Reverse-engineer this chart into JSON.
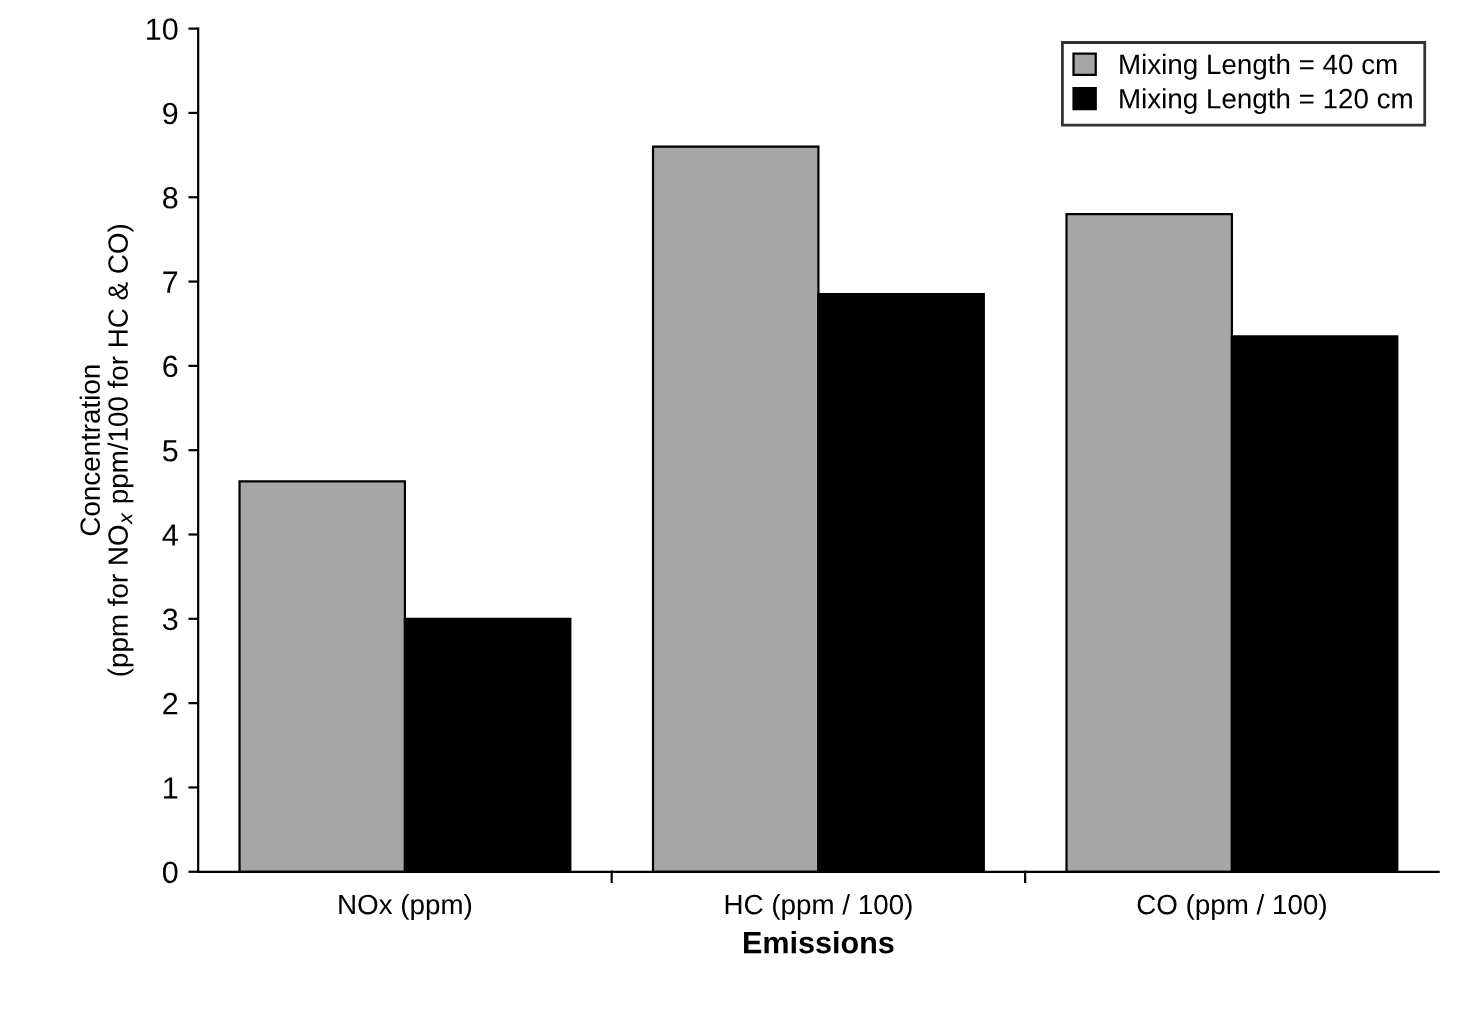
{
  "chart_data": {
    "type": "bar",
    "xlabel": "Emissions",
    "ylabel": "Concentration\n(ppm for NO$_{x}$ ppm/100 for HC & CO)",
    "categories": [
      "NOx (ppm)",
      "HC (ppm / 100)",
      "CO (ppm / 100)"
    ],
    "series": [
      {
        "name": "Mixing Length = 40 cm",
        "color": "#a6a6a6",
        "values": [
          4.63,
          8.6,
          7.8
        ]
      },
      {
        "name": "Mixing Length = 120 cm",
        "color": "#000000",
        "values": [
          3.0,
          6.85,
          6.35
        ]
      }
    ],
    "ylim": [
      0,
      10
    ],
    "yticks": [
      0,
      1,
      2,
      3,
      4,
      5,
      6,
      7,
      8,
      9,
      10
    ],
    "grid": false,
    "legend": "top right"
  }
}
